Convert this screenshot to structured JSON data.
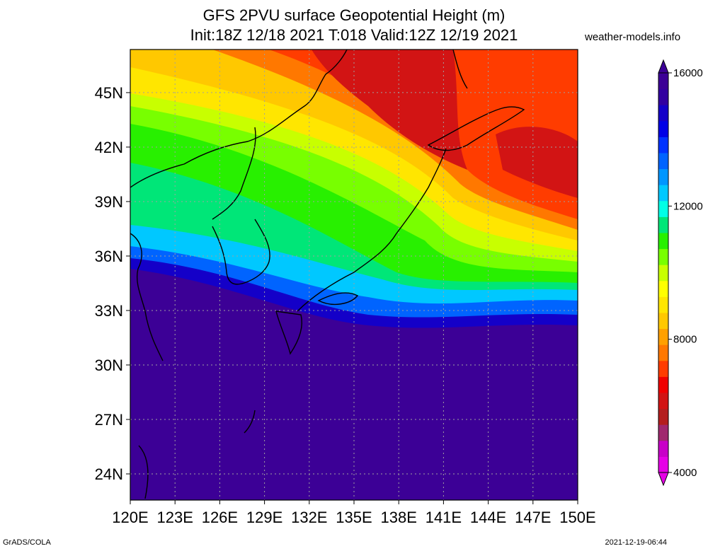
{
  "header": {
    "title_line1": "GFS 2PVU surface Geopotential Height (m)",
    "title_line2": "Init:18Z 12/18 2021 T:018 Valid:12Z 12/19 2021",
    "site": "weather-models.info"
  },
  "footer": {
    "left": "GrADS/COLA",
    "right": "2021-12-19-06:44"
  },
  "axes": {
    "x_ticks": [
      "120E",
      "123E",
      "126E",
      "129E",
      "132E",
      "135E",
      "138E",
      "141E",
      "144E",
      "147E",
      "150E"
    ],
    "y_ticks": [
      "45N",
      "42N",
      "39N",
      "36N",
      "33N",
      "30N",
      "27N",
      "24N"
    ]
  },
  "colorbar": {
    "labels": [
      "16000",
      "12000",
      "8000",
      "4000"
    ],
    "colors": [
      "#e600e6",
      "#c800c8",
      "#a0286e",
      "#b41e1e",
      "#d21414",
      "#f00000",
      "#ff3c00",
      "#ff7800",
      "#ffa000",
      "#ffc800",
      "#ffe600",
      "#ffff00",
      "#c8ff00",
      "#78ff00",
      "#28f000",
      "#00e678",
      "#00ffe6",
      "#00c8ff",
      "#0096ff",
      "#0064ff",
      "#0032ff",
      "#0000e6",
      "#1400c8",
      "#3200a0",
      "#3c0096"
    ]
  }
}
